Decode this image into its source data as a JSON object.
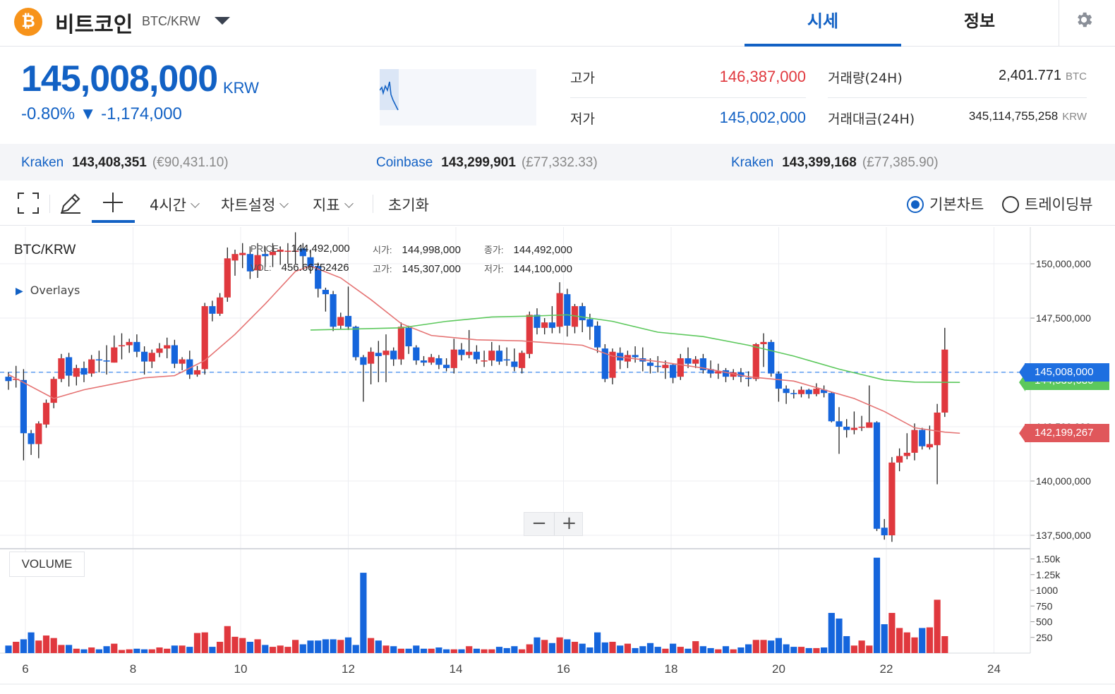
{
  "header": {
    "coin_name": "비트코인",
    "pair": "BTC/KRW",
    "logo_glyph": "₿",
    "tabs": [
      "시세",
      "정보"
    ],
    "settings_icon": "gear-icon"
  },
  "price": {
    "current": "145,008,000",
    "unit": "KRW",
    "change": "-0.80% ▼ -1,174,000"
  },
  "stats": {
    "high_label": "고가",
    "high": "146,387,000",
    "low_label": "저가",
    "low": "145,002,000",
    "volume_label": "거래량(24H)",
    "volume": "2,401.771",
    "volume_unit": "BTC",
    "amount_label": "거래대금(24H)",
    "amount": "345,114,755,258",
    "amount_unit": "KRW"
  },
  "exchanges": [
    {
      "name": "Kraken",
      "price": "143,408,351",
      "sub": "(€90,431.10)"
    },
    {
      "name": "Coinbase",
      "price": "143,299,901",
      "sub": "(£77,332.33)"
    },
    {
      "name": "Kraken",
      "price": "143,399,168",
      "sub": "(£77,385.90)"
    }
  ],
  "toolbar": {
    "interval": "4시간",
    "chart_settings": "차트설정",
    "indicators": "지표",
    "reset": "초기화",
    "view_basic": "기본차트",
    "view_trading": "트레이딩뷰"
  },
  "chart": {
    "symbol": "BTC/KRW",
    "overlays": "Overlays",
    "info": {
      "price_key": "PRICE:",
      "price_val": "144,492,000",
      "vol_key": "VOL:",
      "vol_val": "456.66752426",
      "open_key": "시가:",
      "open_val": "144,998,000",
      "high_key": "고가:",
      "high_val": "145,307,000",
      "close_key": "종가:",
      "close_val": "144,492,000",
      "low_key": "저가:",
      "low_val": "144,100,000"
    },
    "zoom_out": "−",
    "zoom_in": "+",
    "volume_label": "VOLUME",
    "tag_last": "145,008,000",
    "tag_ma_long": "144,539,680",
    "tag_ma_short": "142,199,267"
  },
  "colors": {
    "accent": "#1261c4",
    "up": "#e0383e",
    "down": "#1565dc",
    "ma_short": "#e57373",
    "ma_long": "#5cc85c"
  },
  "chart_data": {
    "type": "candlestick",
    "price_ticks": [
      "150,000,000",
      "147,500,000",
      "145,000,000",
      "142,500,000",
      "140,000,000",
      "137,500,000"
    ],
    "price_tick_values": [
      150000000,
      147500000,
      145000000,
      142500000,
      140000000,
      137500000
    ],
    "volume_ticks": [
      "1.50k",
      "1.25k",
      "1000",
      "750",
      "500",
      "250"
    ],
    "volume_tick_values": [
      1500,
      1250,
      1000,
      750,
      500,
      250
    ],
    "x_ticks": [
      "6",
      "8",
      "10",
      "12",
      "14",
      "16",
      "18",
      "20",
      "22",
      "24"
    ],
    "last_price": 145008000,
    "ma_long_last": 144539680,
    "ma_short_last": 142199267,
    "candles": [
      [
        144800000,
        144600000,
        145000000,
        144200000,
        120
      ],
      [
        144700000,
        144700000,
        145300000,
        144300000,
        180
      ],
      [
        144650000,
        142200000,
        145150000,
        140950000,
        220
      ],
      [
        142200000,
        141700000,
        142350000,
        141200000,
        330
      ],
      [
        141700000,
        142650000,
        142750000,
        141050000,
        200
      ],
      [
        142600000,
        143600000,
        143750000,
        142450000,
        280
      ],
      [
        143600000,
        144700000,
        144800000,
        143350000,
        240
      ],
      [
        144700000,
        145650000,
        145850000,
        144550000,
        130
      ],
      [
        145700000,
        144850000,
        145900000,
        144350000,
        130
      ],
      [
        144800000,
        145200000,
        145350000,
        144400000,
        70
      ],
      [
        145200000,
        144900000,
        145500000,
        144550000,
        60
      ],
      [
        144950000,
        145600000,
        145800000,
        144800000,
        90
      ],
      [
        145600000,
        145550000,
        146000000,
        145000000,
        60
      ],
      [
        145550000,
        145500000,
        146250000,
        144900000,
        110
      ],
      [
        145450000,
        146150000,
        146700000,
        145450000,
        150
      ],
      [
        146200000,
        146250000,
        146800000,
        145600000,
        50
      ],
      [
        146250000,
        146400000,
        146550000,
        145900000,
        60
      ],
      [
        146400000,
        145950000,
        146750000,
        145700000,
        70
      ],
      [
        145950000,
        145500000,
        146200000,
        144900000,
        60
      ],
      [
        145500000,
        145900000,
        146050000,
        145200000,
        60
      ],
      [
        145900000,
        146100000,
        146350000,
        145700000,
        90
      ],
      [
        146100000,
        146250000,
        146600000,
        145650000,
        70
      ],
      [
        146250000,
        145400000,
        146500000,
        145200000,
        120
      ],
      [
        145400000,
        145600000,
        145700000,
        145100000,
        120
      ],
      [
        145600000,
        144900000,
        146000000,
        144700000,
        100
      ],
      [
        144900000,
        145100000,
        145300000,
        144800000,
        320
      ],
      [
        145150000,
        148050000,
        148200000,
        144900000,
        330
      ],
      [
        148050000,
        147700000,
        148300000,
        147350000,
        100
      ],
      [
        147700000,
        148450000,
        148650000,
        147600000,
        180
      ],
      [
        148450000,
        150250000,
        150750000,
        148250000,
        430
      ],
      [
        150150000,
        150450000,
        150650000,
        149450000,
        260
      ],
      [
        150400000,
        150500000,
        150950000,
        149800000,
        240
      ],
      [
        150450000,
        149650000,
        150800000,
        149300000,
        180
      ],
      [
        149700000,
        150400000,
        150950000,
        149350000,
        220
      ],
      [
        150450000,
        150350000,
        150800000,
        149850000,
        130
      ],
      [
        150400000,
        150550000,
        150950000,
        149850000,
        100
      ],
      [
        150550000,
        150650000,
        150800000,
        149950000,
        120
      ],
      [
        150550000,
        150600000,
        150950000,
        150000000,
        100
      ],
      [
        150600000,
        150600000,
        151450000,
        150000000,
        210
      ],
      [
        150700000,
        150350000,
        150950000,
        149850000,
        140
      ],
      [
        150300000,
        149850000,
        150650000,
        149550000,
        200
      ],
      [
        149900000,
        148850000,
        150050000,
        148450000,
        200
      ],
      [
        148800000,
        148600000,
        148900000,
        147800000,
        220
      ],
      [
        148600000,
        147100000,
        148750000,
        146900000,
        220
      ],
      [
        147150000,
        147550000,
        147750000,
        147000000,
        210
      ],
      [
        147600000,
        147100000,
        148950000,
        146950000,
        250
      ],
      [
        147100000,
        145700000,
        147150000,
        145550000,
        130
      ],
      [
        145700000,
        145350000,
        145800000,
        143650000,
        1280
      ],
      [
        145400000,
        145950000,
        146150000,
        144450000,
        240
      ],
      [
        145900000,
        145750000,
        146450000,
        144550000,
        200
      ],
      [
        145800000,
        146000000,
        146750000,
        144550000,
        120
      ],
      [
        146000000,
        145600000,
        146150000,
        145300000,
        110
      ],
      [
        145600000,
        147100000,
        147300000,
        145350000,
        70
      ],
      [
        147050000,
        146200000,
        147150000,
        145850000,
        70
      ],
      [
        146150000,
        145550000,
        146250000,
        145350000,
        120
      ],
      [
        145550000,
        145450000,
        145750000,
        145300000,
        70
      ],
      [
        145450000,
        145700000,
        145850000,
        145350000,
        70
      ],
      [
        145650000,
        145350000,
        145800000,
        145150000,
        90
      ],
      [
        145350000,
        145200000,
        145650000,
        145050000,
        60
      ],
      [
        145200000,
        146050000,
        146550000,
        144950000,
        60
      ],
      [
        146050000,
        145800000,
        146350000,
        145550000,
        60
      ],
      [
        145800000,
        145950000,
        146950000,
        145650000,
        110
      ],
      [
        145950000,
        145600000,
        146250000,
        145400000,
        70
      ],
      [
        145550000,
        145550000,
        146000000,
        145250000,
        60
      ],
      [
        145550000,
        146000000,
        146400000,
        145300000,
        60
      ],
      [
        146000000,
        145500000,
        146250000,
        145350000,
        100
      ],
      [
        145600000,
        145550000,
        146150000,
        145300000,
        80
      ],
      [
        145500000,
        145250000,
        146100000,
        145050000,
        110
      ],
      [
        145200000,
        145900000,
        146000000,
        144950000,
        60
      ],
      [
        145850000,
        147650000,
        147800000,
        145650000,
        140
      ],
      [
        147650000,
        147050000,
        147950000,
        146750000,
        250
      ],
      [
        147050000,
        147300000,
        147500000,
        146750000,
        210
      ],
      [
        147300000,
        147050000,
        148050000,
        146800000,
        160
      ],
      [
        147100000,
        148650000,
        149150000,
        146800000,
        250
      ],
      [
        148600000,
        147150000,
        148850000,
        146650000,
        220
      ],
      [
        147100000,
        148050000,
        148150000,
        146800000,
        180
      ],
      [
        148050000,
        147400000,
        148200000,
        146850000,
        150
      ],
      [
        147450000,
        147100000,
        147700000,
        146500000,
        90
      ],
      [
        147150000,
        146150000,
        147350000,
        145900000,
        330
      ],
      [
        146100000,
        144700000,
        146300000,
        144550000,
        170
      ],
      [
        144750000,
        145950000,
        146100000,
        144450000,
        180
      ],
      [
        145900000,
        145550000,
        146150000,
        145150000,
        120
      ],
      [
        145500000,
        145800000,
        146000000,
        145200000,
        150
      ],
      [
        145800000,
        145700000,
        146200000,
        145450000,
        80
      ],
      [
        145650000,
        145500000,
        146150000,
        145050000,
        110
      ],
      [
        145450000,
        145300000,
        145650000,
        144950000,
        160
      ],
      [
        145300000,
        145250000,
        145750000,
        145000000,
        100
      ],
      [
        145200000,
        145350000,
        145550000,
        144700000,
        70
      ],
      [
        145350000,
        144750000,
        145400000,
        144500000,
        150
      ],
      [
        144800000,
        145650000,
        145850000,
        144650000,
        100
      ],
      [
        145650000,
        145400000,
        146150000,
        145200000,
        70
      ],
      [
        145400000,
        145600000,
        145750000,
        145200000,
        190
      ],
      [
        145650000,
        145100000,
        145850000,
        144950000,
        110
      ],
      [
        145150000,
        144950000,
        145550000,
        144750000,
        80
      ],
      [
        144950000,
        145050000,
        145400000,
        144700000,
        60
      ],
      [
        145100000,
        144800000,
        145200000,
        144550000,
        110
      ],
      [
        144800000,
        145000000,
        145150000,
        144650000,
        60
      ],
      [
        145000000,
        144800000,
        145200000,
        144550000,
        90
      ],
      [
        144750000,
        144700000,
        145050000,
        144350000,
        140
      ],
      [
        144700000,
        146300000,
        146350000,
        144600000,
        210
      ],
      [
        146300000,
        146400000,
        146800000,
        145250000,
        210
      ],
      [
        146400000,
        144950000,
        146500000,
        144800000,
        200
      ],
      [
        144950000,
        144250000,
        145050000,
        143650000,
        240
      ],
      [
        144250000,
        144050000,
        144400000,
        143550000,
        140
      ],
      [
        144050000,
        144000000,
        144200000,
        143800000,
        100
      ],
      [
        144000000,
        144200000,
        144350000,
        143850000,
        100
      ],
      [
        144200000,
        144000000,
        144250000,
        143800000,
        80
      ],
      [
        144000000,
        144250000,
        144500000,
        143900000,
        80
      ],
      [
        144200000,
        144050000,
        144400000,
        143850000,
        90
      ],
      [
        144050000,
        142750000,
        144100000,
        142700000,
        640
      ],
      [
        142750000,
        142500000,
        143400000,
        141250000,
        550
      ],
      [
        142500000,
        142350000,
        142850000,
        142000000,
        270
      ],
      [
        142350000,
        142450000,
        143200000,
        142150000,
        120
      ],
      [
        142450000,
        142500000,
        143000000,
        142300000,
        200
      ],
      [
        142450000,
        142700000,
        144400000,
        142500000,
        120
      ],
      [
        142700000,
        137800000,
        142750000,
        137700000,
        1520
      ],
      [
        137850000,
        137500000,
        138250000,
        137300000,
        460
      ],
      [
        137500000,
        140850000,
        141100000,
        137200000,
        640
      ],
      [
        140850000,
        141150000,
        141500000,
        140450000,
        400
      ],
      [
        141150000,
        141300000,
        142200000,
        141000000,
        330
      ],
      [
        141300000,
        142350000,
        142650000,
        140950000,
        250
      ],
      [
        142350000,
        141600000,
        142450000,
        141450000,
        400
      ],
      [
        141550000,
        141700000,
        142550000,
        141450000,
        410
      ],
      [
        141650000,
        143150000,
        143550000,
        139850000,
        850
      ],
      [
        143150000,
        146050000,
        147050000,
        142950000,
        270
      ]
    ],
    "ma_short": [
      [
        0,
        144900000
      ],
      [
        6,
        143800000
      ],
      [
        10,
        144200000
      ],
      [
        18,
        144750000
      ],
      [
        22,
        144850000
      ],
      [
        26,
        145550000
      ],
      [
        30,
        146750000
      ],
      [
        34,
        148150000
      ],
      [
        38,
        149650000
      ],
      [
        40,
        149900000
      ],
      [
        44,
        149350000
      ],
      [
        48,
        148350000
      ],
      [
        52,
        147250000
      ],
      [
        56,
        146700000
      ],
      [
        62,
        146500000
      ],
      [
        68,
        146450000
      ],
      [
        72,
        146350000
      ],
      [
        76,
        146250000
      ],
      [
        80,
        145750000
      ],
      [
        86,
        145500000
      ],
      [
        92,
        145200000
      ],
      [
        98,
        144800000
      ],
      [
        104,
        144600000
      ],
      [
        108,
        144200000
      ],
      [
        112,
        143800000
      ],
      [
        116,
        143200000
      ],
      [
        120,
        142450000
      ],
      [
        124,
        142250000
      ],
      [
        126,
        142199267
      ]
    ],
    "ma_long": [
      [
        40,
        146950000
      ],
      [
        46,
        147000000
      ],
      [
        52,
        147050000
      ],
      [
        58,
        147350000
      ],
      [
        64,
        147550000
      ],
      [
        70,
        147600000
      ],
      [
        74,
        147650000
      ],
      [
        80,
        147350000
      ],
      [
        86,
        146850000
      ],
      [
        92,
        146650000
      ],
      [
        98,
        146250000
      ],
      [
        104,
        145750000
      ],
      [
        110,
        145150000
      ],
      [
        116,
        144650000
      ],
      [
        120,
        144550000
      ],
      [
        126,
        144539680
      ]
    ]
  }
}
